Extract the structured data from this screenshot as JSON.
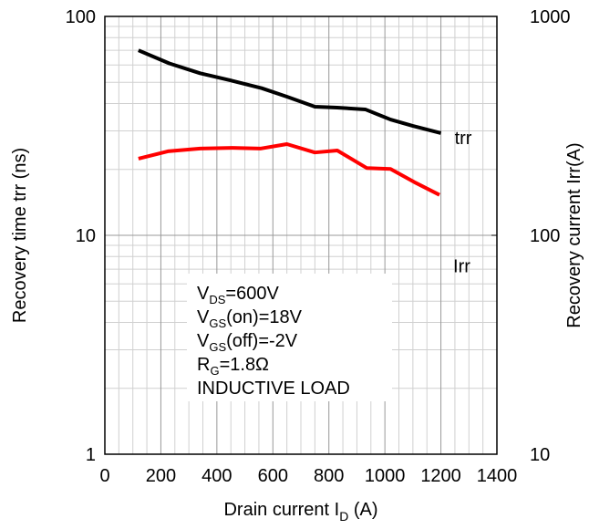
{
  "chart_data": {
    "type": "line",
    "x_label": [
      "Drain current I",
      "D",
      " (A)"
    ],
    "y_label": "Recovery time trr (ns)",
    "y2_label": "Recovery current Irr(A)",
    "xlim": [
      0,
      1400
    ],
    "xticks": [
      0,
      200,
      400,
      600,
      800,
      1000,
      1200,
      1400
    ],
    "ylim": [
      1,
      100
    ],
    "yticks": [
      1,
      10,
      100
    ],
    "y2lim": [
      10,
      1000
    ],
    "y2ticks": [
      10,
      100,
      1000
    ],
    "log_y": true,
    "grid": true,
    "series": [
      {
        "name": "trr",
        "color": "#000000",
        "axis": "y",
        "x": [
          120,
          230,
          340,
          450,
          560,
          650,
          750,
          830,
          930,
          1020,
          1100,
          1200
        ],
        "values": [
          70,
          61,
          55,
          51,
          47,
          43,
          38.7,
          38.3,
          37.6,
          33.8,
          31.6,
          29.3
        ]
      },
      {
        "name": "Irr",
        "color": "#ff0000",
        "axis": "y2",
        "x": [
          120,
          225,
          340,
          455,
          555,
          650,
          750,
          830,
          935,
          1020,
          1105,
          1195
        ],
        "values": [
          224,
          242,
          249,
          251,
          249,
          261,
          239,
          244,
          203,
          201,
          175,
          153
        ]
      }
    ],
    "conditions": [
      [
        "V",
        "DS",
        "=600V"
      ],
      [
        "V",
        "GS",
        "(on)=18V"
      ],
      [
        "V",
        "GS",
        "(off)=-2V"
      ],
      [
        "R",
        "G",
        "=1.8Ω"
      ],
      [
        "INDUCTIVE LOAD"
      ]
    ]
  }
}
